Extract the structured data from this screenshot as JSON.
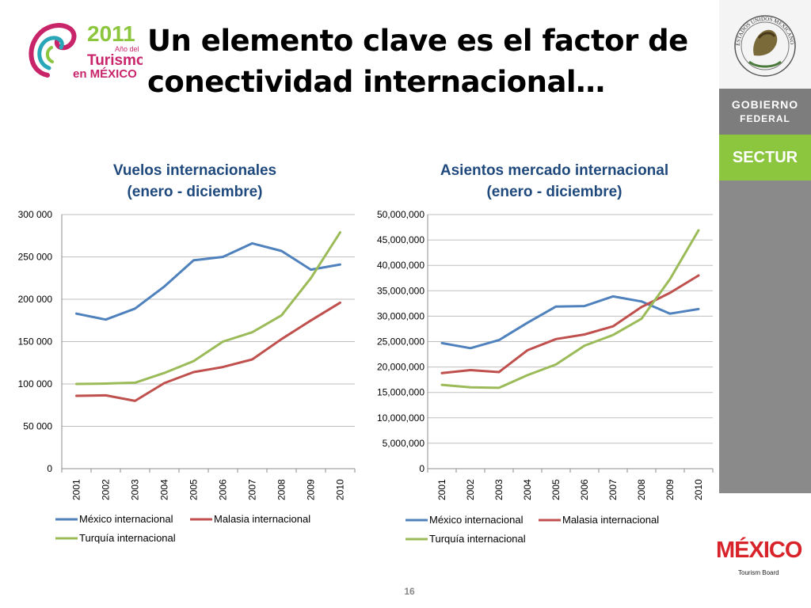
{
  "slide": {
    "title_line1": "Un elemento clave es el factor de",
    "title_line2": "conectividad internacional…",
    "page_number": "16"
  },
  "logo_2011": {
    "year": "2011",
    "line1": "Año del",
    "line2": "Turismo",
    "line3": "en MÉXICO"
  },
  "sidebar": {
    "seal_text": "ESTADOS UNIDOS MEXICANOS",
    "gobierno_line1": "GOBIERNO",
    "gobierno_line2": "FEDERAL",
    "sectur": "SECTUR"
  },
  "mexico_logo": {
    "word": "MÉXICO",
    "tag": "Tourism Board"
  },
  "colors": {
    "mexico": "#4f81bd",
    "malasia": "#c0504d",
    "turquia": "#9bbb59",
    "grid": "#bfbfbf",
    "title": "#1f497d",
    "sectur": "#8cc63f",
    "gobierno": "#7d7d7d"
  },
  "chart_data": [
    {
      "type": "line",
      "title_line1": "Vuelos internacionales",
      "title_line2": "(enero - diciembre)",
      "categories": [
        "2001",
        "2002",
        "2003",
        "2004",
        "2005",
        "2006",
        "2007",
        "2008",
        "2009",
        "2010"
      ],
      "ylim": [
        0,
        300000
      ],
      "y_ticks": [
        0,
        50000,
        100000,
        150000,
        200000,
        250000,
        300000
      ],
      "y_tick_labels": [
        "0",
        "50 000",
        "100 000",
        "150 000",
        "200 000",
        "250 000",
        "300 000"
      ],
      "grid": true,
      "legend_position": "bottom",
      "series": [
        {
          "name": "México internacional",
          "color": "#4f81bd",
          "values": [
            183000,
            176000,
            189000,
            215000,
            246000,
            250000,
            266000,
            257000,
            235000,
            241000
          ]
        },
        {
          "name": "Malasia internacional",
          "color": "#c0504d",
          "values": [
            86000,
            86500,
            80000,
            101000,
            114000,
            120000,
            129000,
            153000,
            175000,
            196000
          ]
        },
        {
          "name": "Turquía internacional",
          "color": "#9bbb59",
          "values": [
            100000,
            100500,
            101500,
            113000,
            127000,
            150000,
            161000,
            181000,
            225000,
            279000
          ]
        }
      ]
    },
    {
      "type": "line",
      "title_line1": "Asientos mercado internacional",
      "title_line2": "(enero - diciembre)",
      "categories": [
        "2001",
        "2002",
        "2003",
        "2004",
        "2005",
        "2006",
        "2007",
        "2008",
        "2009",
        "2010"
      ],
      "ylim": [
        0,
        50000000
      ],
      "y_ticks": [
        0,
        5000000,
        10000000,
        15000000,
        20000000,
        25000000,
        30000000,
        35000000,
        40000000,
        45000000,
        50000000
      ],
      "y_tick_labels": [
        "0",
        "5,000,000",
        "10,000,000",
        "15,000,000",
        "20,000,000",
        "25,000,000",
        "30,000,000",
        "35,000,000",
        "40,000,000",
        "45,000,000",
        "50,000,000"
      ],
      "grid": true,
      "legend_position": "bottom",
      "series": [
        {
          "name": "México internacional",
          "color": "#4f81bd",
          "values": [
            24700000,
            23700000,
            25300000,
            28700000,
            31900000,
            32000000,
            33900000,
            32900000,
            30500000,
            31400000
          ]
        },
        {
          "name": "Malasia internacional",
          "color": "#c0504d",
          "values": [
            18800000,
            19400000,
            19000000,
            23300000,
            25500000,
            26400000,
            28000000,
            31800000,
            34600000,
            38000000
          ]
        },
        {
          "name": "Turquía internacional",
          "color": "#9bbb59",
          "values": [
            16500000,
            16000000,
            15900000,
            18400000,
            20500000,
            24200000,
            26300000,
            29500000,
            37300000,
            46900000
          ]
        }
      ]
    }
  ]
}
